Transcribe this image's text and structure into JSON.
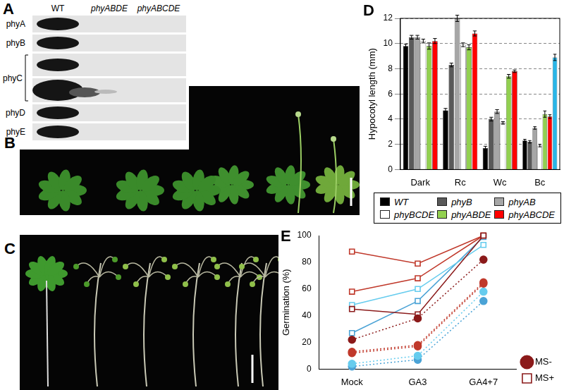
{
  "panel_labels": [
    "A",
    "B",
    "C",
    "D",
    "E"
  ],
  "blot": {
    "columns": [
      "WT",
      "phyABDE",
      "phyABCDE"
    ],
    "rows": [
      "phyA",
      "phyB",
      "phyC",
      "phyD",
      "phyE"
    ]
  },
  "chart_data": [
    {
      "type": "bar",
      "ylabel": "Hypocotyl length (mm)",
      "categories": [
        "Dark",
        "Rc",
        "Wc",
        "Bc"
      ],
      "series": [
        {
          "name": "WT",
          "color": "#000000",
          "values": [
            9.8,
            4.7,
            1.7,
            2.3
          ],
          "errors": [
            0.15,
            0.15,
            0.15,
            0.1
          ]
        },
        {
          "name": "phyB",
          "color": "#595959",
          "values": [
            10.5,
            8.3,
            4.0,
            2.2
          ],
          "errors": [
            0.15,
            0.15,
            0.15,
            0.1
          ]
        },
        {
          "name": "phyAB",
          "color": "#a6a6a6",
          "values": [
            10.5,
            12.0,
            4.6,
            3.3
          ],
          "errors": [
            0.15,
            0.25,
            0.15,
            0.1
          ]
        },
        {
          "name": "phyBCDE",
          "color": "#ffffff",
          "values": [
            10.2,
            9.9,
            3.7,
            1.9
          ],
          "errors": [
            0.15,
            0.15,
            0.1,
            0.1
          ]
        },
        {
          "name": "phyABDE",
          "color": "#92d050",
          "values": [
            9.8,
            9.7,
            7.4,
            4.4
          ],
          "errors": [
            0.25,
            0.2,
            0.15,
            0.25
          ]
        },
        {
          "name": "phyABCDE",
          "color": "#ff0000",
          "values": [
            10.2,
            10.8,
            7.8,
            4.2
          ],
          "errors": [
            0.2,
            0.2,
            0.1,
            0.15
          ]
        },
        {
          "name": null,
          "color": "#29b6e8",
          "values": [
            null,
            null,
            null,
            8.9
          ],
          "errors": [
            null,
            null,
            null,
            0.25
          ]
        }
      ],
      "ylim": [
        0,
        12
      ],
      "yticks": [
        0,
        2,
        4,
        6,
        8,
        10,
        12
      ],
      "grid": true,
      "legend": "bottom"
    },
    {
      "type": "line",
      "ylabel": "Germination (%)",
      "categories": [
        "Mock",
        "GA3",
        "GA4+7"
      ],
      "series": [
        {
          "name": "MS-",
          "color": "#8b1a1a",
          "marker": "filled_circle",
          "line_style": "dotted",
          "values": [
            22,
            38,
            82
          ]
        },
        {
          "name": "MS-",
          "color": "#c0392b",
          "marker": "filled_circle",
          "line_style": "dotted",
          "values": [
            13,
            18,
            65
          ]
        },
        {
          "name": "MS-",
          "color": "#c0392b",
          "marker": "filled_circle",
          "line_style": "dotted",
          "values": [
            12,
            17,
            64
          ]
        },
        {
          "name": "MS-",
          "color": "#66ccee",
          "marker": "filled_circle",
          "line_style": "dotted",
          "values": [
            4,
            10,
            58
          ]
        },
        {
          "name": "MS-",
          "color": "#4ba3d6",
          "marker": "filled_circle",
          "line_style": "dotted",
          "values": [
            2,
            7,
            51
          ]
        },
        {
          "name": "MS+",
          "color": "#8b1a1a",
          "marker": "open_square",
          "line_style": "solid",
          "values": [
            45,
            41,
            100
          ]
        },
        {
          "name": "MS+",
          "color": "#c0392b",
          "marker": "open_square",
          "line_style": "solid",
          "values": [
            88,
            79,
            100
          ]
        },
        {
          "name": "MS+",
          "color": "#c0392b",
          "marker": "open_square",
          "line_style": "solid",
          "values": [
            58,
            68,
            100
          ]
        },
        {
          "name": "MS+",
          "color": "#66ccee",
          "marker": "open_square",
          "line_style": "solid",
          "values": [
            48,
            60,
            93
          ]
        },
        {
          "name": "MS+",
          "color": "#4ba3d6",
          "marker": "open_square",
          "line_style": "solid",
          "values": [
            27,
            51,
            99
          ]
        }
      ],
      "ylim": [
        0,
        100
      ],
      "yticks": [
        0,
        20,
        40,
        60,
        80,
        100
      ],
      "grid": false,
      "legend": "lower right"
    }
  ]
}
